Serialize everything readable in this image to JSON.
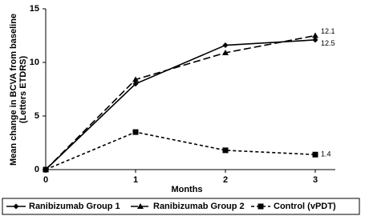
{
  "chart_data": {
    "type": "line",
    "y_label": [
      "Mean change in BCVA from baseline",
      "(Letters ETDRS)"
    ],
    "x_label": "Months",
    "x": [
      0,
      1,
      2,
      3
    ],
    "xlim": [
      0,
      3
    ],
    "xticks": [
      0,
      1,
      2,
      3
    ],
    "ylim": [
      0,
      15
    ],
    "yticks": [
      0,
      5,
      10,
      15
    ],
    "series": [
      {
        "name": "Ranibizumab Group 1",
        "color": "#000000",
        "dash": "solid",
        "marker": "diamond",
        "values": [
          0,
          8.0,
          11.6,
          12.1
        ],
        "value_labels": [
          null,
          null,
          null,
          "12.1"
        ]
      },
      {
        "name": "Ranibizumab Group 2",
        "color": "#000000",
        "dash": "long",
        "marker": "triangle",
        "values": [
          0,
          8.4,
          10.9,
          12.5
        ],
        "value_labels": [
          null,
          null,
          null,
          "12.5"
        ]
      },
      {
        "name": "Control (vPDT)",
        "color": "#000000",
        "dash": "short",
        "marker": "square",
        "values": [
          0,
          3.5,
          1.8,
          1.4
        ],
        "value_labels": [
          null,
          null,
          null,
          "1.4"
        ]
      }
    ]
  }
}
